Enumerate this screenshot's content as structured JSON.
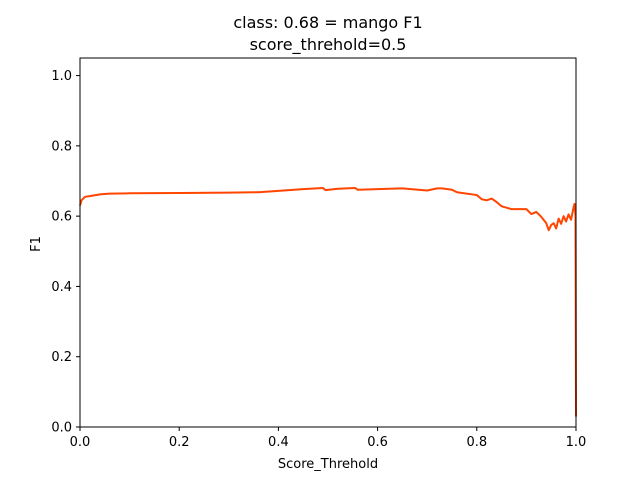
{
  "chart_data": {
    "type": "line",
    "title": "class: 0.68 = mango F1",
    "subtitle": "score_threhold=0.5",
    "xlabel": "Score_Threhold",
    "ylabel": "F1",
    "xlim": [
      0.0,
      1.0
    ],
    "ylim": [
      0.0,
      1.05
    ],
    "x_ticks": [
      "0.0",
      "0.2",
      "0.4",
      "0.6",
      "0.8",
      "1.0"
    ],
    "y_ticks": [
      "0.0",
      "0.2",
      "0.4",
      "0.6",
      "0.8",
      "1.0"
    ],
    "grid": false,
    "legend": "none",
    "line_color": "#ff4500",
    "series": [
      {
        "x": [
          0.0,
          0.003,
          0.01,
          0.02,
          0.04,
          0.06,
          0.1,
          0.2,
          0.3,
          0.36,
          0.4,
          0.45,
          0.49,
          0.495,
          0.52,
          0.555,
          0.56,
          0.6,
          0.65,
          0.7,
          0.72,
          0.73,
          0.75,
          0.76,
          0.8,
          0.81,
          0.82,
          0.83,
          0.84,
          0.85,
          0.86,
          0.87,
          0.88,
          0.9,
          0.91,
          0.92,
          0.93,
          0.94,
          0.945,
          0.95,
          0.955,
          0.96,
          0.965,
          0.97,
          0.975,
          0.98,
          0.985,
          0.99,
          0.993,
          0.995,
          0.997,
          0.999,
          1.0
        ],
        "y": [
          0.63,
          0.645,
          0.655,
          0.657,
          0.662,
          0.664,
          0.665,
          0.666,
          0.667,
          0.668,
          0.672,
          0.677,
          0.68,
          0.674,
          0.678,
          0.68,
          0.675,
          0.677,
          0.679,
          0.673,
          0.679,
          0.679,
          0.675,
          0.668,
          0.66,
          0.648,
          0.645,
          0.65,
          0.64,
          0.628,
          0.624,
          0.62,
          0.62,
          0.62,
          0.606,
          0.612,
          0.598,
          0.58,
          0.56,
          0.575,
          0.58,
          0.565,
          0.593,
          0.578,
          0.6,
          0.585,
          0.605,
          0.59,
          0.61,
          0.625,
          0.635,
          0.6,
          0.03
        ]
      }
    ]
  }
}
